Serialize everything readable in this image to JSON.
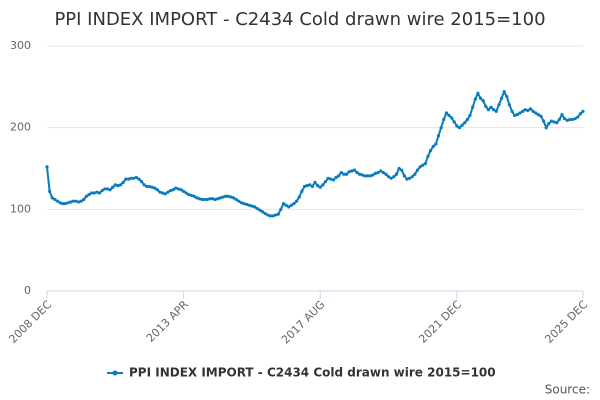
{
  "chart_data": {
    "type": "line",
    "title": "PPI INDEX IMPORT - C2434 Cold drawn wire 2015=100",
    "source": "Source:",
    "categories": [
      "2008 DEC",
      null,
      null,
      null,
      null,
      null,
      null,
      null,
      null,
      null,
      null,
      null,
      null,
      null,
      null,
      null,
      null,
      null,
      null,
      null,
      null,
      null,
      null,
      null,
      null,
      null,
      null,
      null,
      null,
      null,
      null,
      null,
      null,
      null,
      null,
      null,
      null,
      null,
      null,
      null,
      null,
      null,
      null,
      null,
      null,
      null,
      null,
      null,
      null,
      null,
      null,
      null,
      "2013 APR",
      null,
      null,
      null,
      null,
      null,
      null,
      null,
      null,
      null,
      null,
      null,
      null,
      null,
      null,
      null,
      null,
      null,
      null,
      null,
      null,
      null,
      null,
      null,
      null,
      null,
      null,
      null,
      null,
      null,
      null,
      null,
      null,
      null,
      null,
      null,
      null,
      null,
      null,
      null,
      null,
      null,
      null,
      null,
      null,
      null,
      null,
      null,
      null,
      null,
      null,
      null,
      "2017 AUG",
      null,
      null,
      null,
      null,
      null,
      null,
      null,
      null,
      null,
      null,
      null,
      null,
      null,
      null,
      null,
      null,
      null,
      null,
      null,
      null,
      null,
      null,
      null,
      null,
      null,
      null,
      null,
      null,
      null,
      null,
      null,
      null,
      null,
      null,
      null,
      null,
      null,
      null,
      null,
      null,
      null,
      null,
      null,
      null,
      null,
      null,
      null,
      null,
      null,
      null,
      null,
      "2021 DEC",
      null,
      null,
      null,
      null,
      null,
      null,
      null,
      null,
      null,
      null,
      null,
      null,
      null,
      null,
      null,
      null,
      null,
      null,
      null,
      null,
      null,
      null,
      null,
      null,
      null,
      null,
      null,
      null,
      null,
      null,
      null,
      null,
      null,
      null,
      null,
      null,
      null,
      null,
      null,
      null,
      null,
      null,
      null,
      null,
      null,
      null,
      null,
      "2025 DEC"
    ],
    "series": [
      {
        "name": "PPI INDEX IMPORT - C2434 Cold drawn wire 2015=100",
        "color": "#0a7bbd",
        "values": [
          152,
          122,
          114,
          112,
          110,
          108,
          107,
          107,
          108,
          109,
          110,
          110,
          109,
          110,
          112,
          116,
          118,
          120,
          120,
          121,
          120,
          123,
          125,
          125,
          124,
          127,
          130,
          129,
          130,
          133,
          137,
          137,
          138,
          138,
          139,
          137,
          134,
          130,
          128,
          128,
          127,
          126,
          124,
          121,
          120,
          119,
          121,
          123,
          124,
          126,
          125,
          124,
          122,
          120,
          118,
          117,
          116,
          114,
          113,
          112,
          112,
          112,
          113,
          113,
          112,
          113,
          114,
          115,
          116,
          116,
          115,
          114,
          112,
          110,
          108,
          107,
          106,
          105,
          104,
          103,
          101,
          99,
          97,
          95,
          93,
          92,
          92,
          93,
          94,
          100,
          107,
          105,
          103,
          105,
          107,
          110,
          115,
          122,
          128,
          129,
          130,
          128,
          133,
          129,
          127,
          130,
          134,
          138,
          137,
          136,
          139,
          141,
          145,
          143,
          143,
          146,
          147,
          148,
          145,
          143,
          142,
          141,
          141,
          141,
          142,
          144,
          145,
          147,
          145,
          143,
          140,
          138,
          140,
          143,
          150,
          148,
          141,
          137,
          138,
          140,
          143,
          148,
          152,
          154,
          156,
          165,
          172,
          177,
          180,
          190,
          200,
          210,
          218,
          215,
          212,
          207,
          202,
          200,
          203,
          206,
          210,
          215,
          225,
          235,
          242,
          236,
          233,
          226,
          222,
          225,
          222,
          220,
          228,
          236,
          244,
          238,
          228,
          220,
          215,
          216,
          218,
          220,
          222,
          221,
          223,
          220,
          218,
          216,
          214,
          208,
          200,
          205,
          208,
          207,
          206,
          210,
          216,
          211,
          209,
          210,
          210,
          211,
          213,
          217,
          220
        ]
      }
    ],
    "ylim": [
      0,
      300
    ],
    "yticks": [
      0,
      100,
      200,
      300
    ],
    "grid": true
  }
}
